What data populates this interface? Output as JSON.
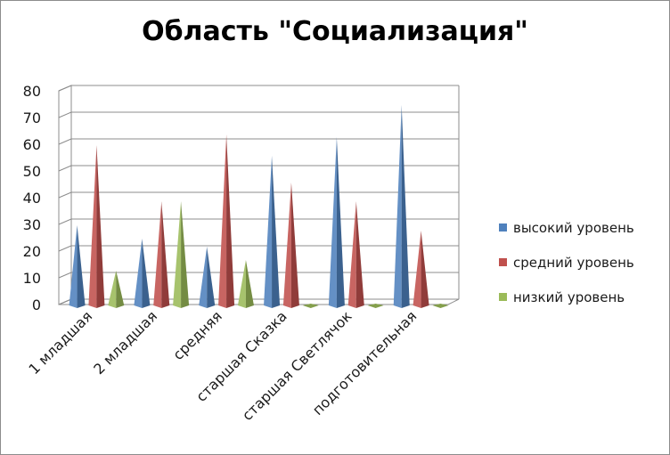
{
  "chart_data": {
    "type": "bar",
    "title": "Область \"Социализация\"",
    "categories": [
      "1 младшая",
      "2 младшая",
      "средняя",
      "старшая Сказка",
      "старшая Светлячок",
      "подготовительная"
    ],
    "series": [
      {
        "name": "высокий уровень",
        "color": "#4f81bd",
        "values": [
          29,
          24,
          21,
          55,
          62,
          74
        ]
      },
      {
        "name": "средний уровень",
        "color": "#c0504d",
        "values": [
          59,
          38,
          63,
          45,
          38,
          27
        ]
      },
      {
        "name": "низкий уровень",
        "color": "#9bbb59",
        "values": [
          12,
          38,
          16,
          0,
          0,
          0
        ]
      }
    ],
    "yticks": [
      "0",
      "10",
      "20",
      "30",
      "40",
      "50",
      "60",
      "70",
      "80"
    ],
    "ylim": [
      0,
      80
    ],
    "grid": true,
    "legend_position": "right",
    "bar_shape": "cone-3d"
  }
}
